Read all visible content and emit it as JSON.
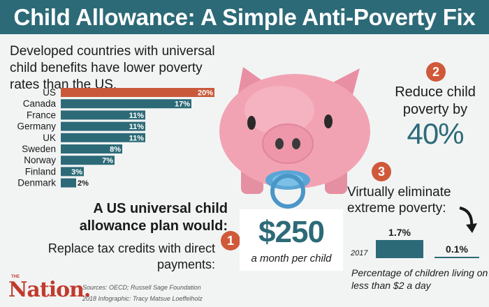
{
  "header": {
    "title": "Child Allowance: A Simple Anti-Poverty Fix"
  },
  "subtitle": "Developed countries with universal child benefits have lower poverty rates than the US.",
  "chart_data": [
    {
      "type": "bar",
      "orientation": "horizontal",
      "categories": [
        "US",
        "Canada",
        "France",
        "Germany",
        "UK",
        "Sweden",
        "Norway",
        "Finland",
        "Denmark"
      ],
      "values": [
        20,
        17,
        11,
        11,
        11,
        8,
        7,
        3,
        2
      ],
      "labels": [
        "20%",
        "17%",
        "11%",
        "11%",
        "11%",
        "8%",
        "7%",
        "3%",
        "2%"
      ],
      "colors": {
        "highlight": "#c9583a",
        "default": "#2d6a78"
      }
    },
    {
      "type": "bar",
      "categories": [
        "2017",
        ""
      ],
      "values": [
        1.7,
        0.1
      ],
      "labels": [
        "1.7%",
        "0.1%"
      ],
      "year_label": "2017",
      "colors": {
        "bar": "#2d6a78"
      }
    }
  ],
  "plan": {
    "heading": "A US universal child allowance plan would:",
    "step1": {
      "number": "1",
      "text": "Replace tax credits with direct payments:",
      "amount": "$250",
      "amount_caption": "a month per child"
    },
    "step2": {
      "number": "2",
      "text": "Reduce child poverty by",
      "value": "40%"
    },
    "step3": {
      "number": "3",
      "text": "Virtually eliminate extreme poverty:",
      "caption": "Percentage of children living on less than $2 a day"
    }
  },
  "footer": {
    "logo_the": "THE",
    "logo": "Nation.",
    "sources": "Sources: OECD; Russell Sage Foundation",
    "credit": "2018 Infographic: Tracy Matsue Loeffelholz"
  },
  "colors": {
    "teal": "#2d6a78",
    "accent": "#d0593a",
    "pig_pink": "#f2a3b3",
    "pacifier_blue": "#5aa6d6"
  },
  "icons": [
    "piggy-bank-illustration",
    "pacifier-icon",
    "curved-arrow-icon"
  ]
}
